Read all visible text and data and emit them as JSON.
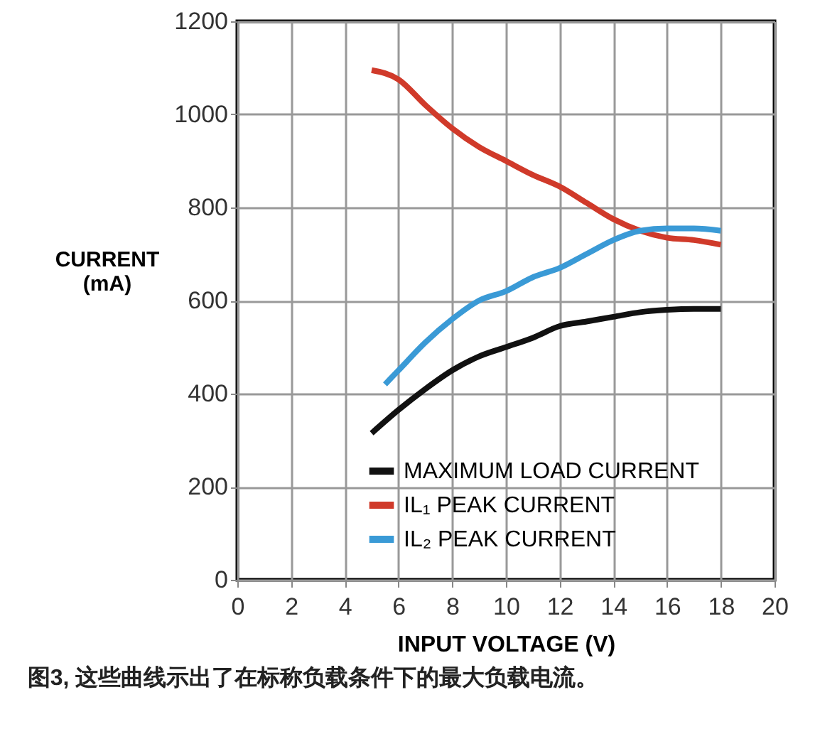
{
  "chart_data": {
    "type": "line",
    "xlabel": "INPUT VOLTAGE (V)",
    "ylabel": "CURRENT (mA)",
    "xlim": [
      0,
      20
    ],
    "xticks": [
      0,
      2,
      4,
      6,
      8,
      10,
      12,
      14,
      16,
      18,
      20
    ],
    "ylim": [
      0,
      1200
    ],
    "yticks": [
      0,
      200,
      400,
      600,
      800,
      1000,
      1200
    ],
    "grid": true,
    "legend": "bottom right",
    "line_style": "solid",
    "marker": "none",
    "series": [
      {
        "name": "MAXIMUM LOAD CURRENT",
        "color": "#111111",
        "x": [
          5,
          6,
          7,
          8,
          9,
          10,
          11,
          12,
          13,
          14,
          15,
          16,
          17,
          18
        ],
        "values": [
          315,
          365,
          410,
          450,
          480,
          500,
          520,
          545,
          555,
          565,
          575,
          580,
          582,
          582
        ]
      },
      {
        "name": "IL₁ PEAK CURRENT",
        "color": "#d03a2a",
        "x": [
          5,
          6,
          7,
          8,
          9,
          10,
          11,
          12,
          13,
          14,
          15,
          16,
          17,
          18
        ],
        "values": [
          1095,
          1075,
          1020,
          970,
          930,
          900,
          870,
          845,
          810,
          775,
          750,
          735,
          730,
          720
        ]
      },
      {
        "name": "IL₂ PEAK CURRENT",
        "color": "#3a9ad6",
        "x": [
          5.5,
          6,
          7,
          8,
          9,
          10,
          11,
          12,
          13,
          14,
          15,
          16,
          17,
          18
        ],
        "values": [
          420,
          450,
          510,
          560,
          600,
          620,
          650,
          670,
          700,
          730,
          750,
          755,
          755,
          750
        ]
      }
    ],
    "annotations": [
      "图3, 这些曲线示出了在标称负载条件下的最大负载电流。"
    ]
  }
}
